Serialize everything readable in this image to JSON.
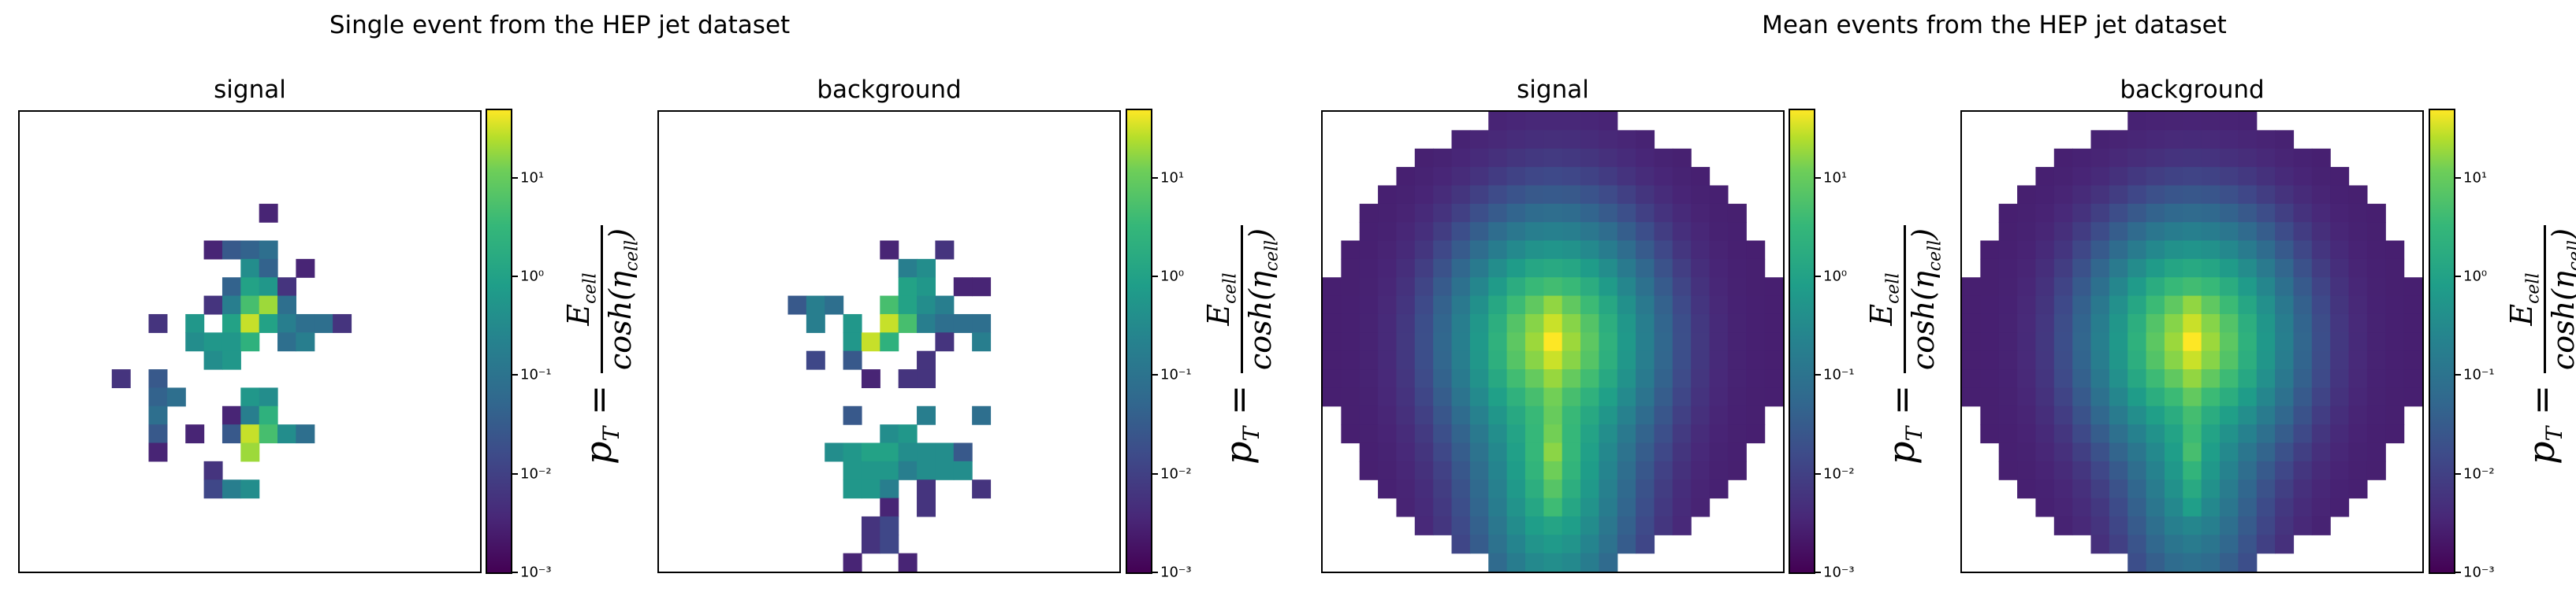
{
  "suptitles": [
    "Single event from the HEP jet dataset",
    "Mean events from the HEP jet dataset"
  ],
  "colorbar_label": {
    "lhs": "p",
    "lhs_sub": "T",
    "numerator": "E",
    "numerator_sub": "cell",
    "denominator": "cosh(η",
    "denominator_sub": "cell",
    "denominator_close": ")"
  },
  "colormap": "viridis",
  "chart_data": [
    {
      "type": "heatmap",
      "title": "signal",
      "group": "Single event from the HEP jet dataset",
      "grid_size": [
        25,
        25
      ],
      "scale": "log",
      "colorbar": {
        "ticks": [
          "10⁻³",
          "10⁻²",
          "10⁻¹",
          "10⁰",
          "10¹"
        ],
        "tick_values": [
          0.001,
          0.01,
          0.1,
          1,
          10
        ],
        "range": [
          0.001,
          50
        ]
      },
      "cells": [
        [
          6,
          13,
          0.003
        ],
        [
          8,
          10,
          0.003
        ],
        [
          8,
          11,
          0.02
        ],
        [
          8,
          12,
          0.03
        ],
        [
          8,
          13,
          0.05
        ],
        [
          9,
          12,
          0.2
        ],
        [
          9,
          13,
          0.03
        ],
        [
          9,
          15,
          0.003
        ],
        [
          10,
          11,
          0.03
        ],
        [
          10,
          12,
          0.5
        ],
        [
          10,
          13,
          0.3
        ],
        [
          10,
          14,
          0.005
        ],
        [
          11,
          10,
          0.005
        ],
        [
          11,
          11,
          0.1
        ],
        [
          11,
          12,
          2
        ],
        [
          11,
          13,
          10
        ],
        [
          11,
          14,
          0.05
        ],
        [
          12,
          7,
          0.005
        ],
        [
          12,
          9,
          0.3
        ],
        [
          12,
          11,
          0.5
        ],
        [
          12,
          12,
          20
        ],
        [
          12,
          13,
          0.5
        ],
        [
          12,
          14,
          0.1
        ],
        [
          12,
          15,
          0.05
        ],
        [
          12,
          16,
          0.05
        ],
        [
          12,
          17,
          0.005
        ],
        [
          13,
          9,
          0.2
        ],
        [
          13,
          10,
          0.3
        ],
        [
          13,
          11,
          0.3
        ],
        [
          13,
          12,
          1
        ],
        [
          13,
          14,
          0.05
        ],
        [
          13,
          15,
          0.1
        ],
        [
          14,
          10,
          0.2
        ],
        [
          14,
          11,
          0.3
        ],
        [
          15,
          5,
          0.005
        ],
        [
          15,
          7,
          0.02
        ],
        [
          16,
          7,
          0.03
        ],
        [
          16,
          8,
          0.05
        ],
        [
          16,
          12,
          0.3
        ],
        [
          16,
          13,
          0.2
        ],
        [
          17,
          7,
          0.05
        ],
        [
          17,
          11,
          0.003
        ],
        [
          17,
          12,
          0.1
        ],
        [
          17,
          13,
          1
        ],
        [
          18,
          7,
          0.02
        ],
        [
          18,
          9,
          0.003
        ],
        [
          18,
          11,
          0.02
        ],
        [
          18,
          12,
          20
        ],
        [
          18,
          13,
          2
        ],
        [
          18,
          14,
          0.2
        ],
        [
          18,
          15,
          0.05
        ],
        [
          19,
          7,
          0.003
        ],
        [
          19,
          12,
          10
        ],
        [
          20,
          10,
          0.005
        ],
        [
          21,
          10,
          0.01
        ],
        [
          21,
          11,
          0.1
        ],
        [
          21,
          12,
          0.2
        ]
      ]
    },
    {
      "type": "heatmap",
      "title": "background",
      "group": "Single event from the HEP jet dataset",
      "grid_size": [
        25,
        25
      ],
      "scale": "log",
      "colorbar": {
        "ticks": [
          "10⁻³",
          "10⁻²",
          "10⁻¹",
          "10⁰",
          "10¹"
        ],
        "tick_values": [
          0.001,
          0.01,
          0.1,
          1,
          10
        ],
        "range": [
          0.001,
          50
        ]
      },
      "cells": [
        [
          8,
          12,
          0.003
        ],
        [
          8,
          15,
          0.005
        ],
        [
          9,
          13,
          0.1
        ],
        [
          9,
          14,
          0.2
        ],
        [
          10,
          13,
          0.5
        ],
        [
          10,
          14,
          0.3
        ],
        [
          10,
          16,
          0.003
        ],
        [
          10,
          17,
          0.003
        ],
        [
          11,
          7,
          0.02
        ],
        [
          11,
          8,
          0.1
        ],
        [
          11,
          9,
          0.05
        ],
        [
          11,
          12,
          2
        ],
        [
          11,
          13,
          0.5
        ],
        [
          11,
          14,
          0.2
        ],
        [
          11,
          15,
          0.1
        ],
        [
          12,
          8,
          0.1
        ],
        [
          12,
          10,
          0.3
        ],
        [
          12,
          12,
          20
        ],
        [
          12,
          13,
          2
        ],
        [
          12,
          14,
          0.1
        ],
        [
          12,
          15,
          0.05
        ],
        [
          12,
          16,
          0.05
        ],
        [
          12,
          17,
          0.05
        ],
        [
          13,
          10,
          0.3
        ],
        [
          13,
          11,
          20
        ],
        [
          13,
          12,
          1
        ],
        [
          13,
          15,
          0.005
        ],
        [
          13,
          17,
          0.1
        ],
        [
          14,
          8,
          0.01
        ],
        [
          14,
          10,
          0.02
        ],
        [
          14,
          14,
          0.005
        ],
        [
          15,
          11,
          0.003
        ],
        [
          15,
          13,
          0.005
        ],
        [
          15,
          14,
          0.005
        ],
        [
          17,
          10,
          0.02
        ],
        [
          17,
          14,
          0.1
        ],
        [
          17,
          17,
          0.05
        ],
        [
          18,
          12,
          0.2
        ],
        [
          18,
          13,
          0.3
        ],
        [
          19,
          9,
          0.2
        ],
        [
          19,
          10,
          0.3
        ],
        [
          19,
          11,
          0.5
        ],
        [
          19,
          12,
          0.5
        ],
        [
          19,
          13,
          0.2
        ],
        [
          19,
          14,
          0.2
        ],
        [
          19,
          15,
          0.2
        ],
        [
          19,
          16,
          0.02
        ],
        [
          20,
          10,
          0.3
        ],
        [
          20,
          11,
          0.3
        ],
        [
          20,
          12,
          0.3
        ],
        [
          20,
          13,
          0.1
        ],
        [
          20,
          14,
          0.2
        ],
        [
          20,
          15,
          0.2
        ],
        [
          20,
          16,
          0.2
        ],
        [
          21,
          10,
          0.3
        ],
        [
          21,
          11,
          0.3
        ],
        [
          21,
          12,
          0.1
        ],
        [
          21,
          14,
          0.005
        ],
        [
          21,
          17,
          0.005
        ],
        [
          22,
          12,
          0.003
        ],
        [
          22,
          14,
          0.005
        ],
        [
          23,
          11,
          0.005
        ],
        [
          23,
          12,
          0.01
        ],
        [
          24,
          11,
          0.005
        ],
        [
          24,
          12,
          0.01
        ],
        [
          25,
          10,
          0.003
        ],
        [
          25,
          13,
          0.003
        ]
      ]
    },
    {
      "type": "heatmap",
      "title": "signal",
      "group": "Mean events from the HEP jet dataset",
      "grid_size": [
        25,
        25
      ],
      "scale": "log",
      "aggregate": "mean",
      "colorbar": {
        "ticks": [
          "10⁻³",
          "10⁻²",
          "10⁻¹",
          "10⁰",
          "10¹"
        ],
        "tick_values": [
          0.001,
          0.01,
          0.1,
          1,
          10
        ],
        "range": [
          0.001,
          50
        ]
      },
      "profile": {
        "circle_radius_cells": 12.5,
        "peak_value": 30,
        "core_center": [
          12,
          12
        ],
        "secondary_center": [
          18,
          12
        ],
        "secondary_peak": 4
      }
    },
    {
      "type": "heatmap",
      "title": "background",
      "group": "Mean events from the HEP jet dataset",
      "grid_size": [
        25,
        25
      ],
      "scale": "log",
      "aggregate": "mean",
      "colorbar": {
        "ticks": [
          "10⁻³",
          "10⁻²",
          "10⁻¹",
          "10⁰",
          "10¹"
        ],
        "tick_values": [
          0.001,
          0.01,
          0.1,
          1,
          10
        ],
        "range": [
          0.001,
          50
        ]
      },
      "profile": {
        "circle_radius_cells": 12.5,
        "peak_value": 30,
        "core_center": [
          12,
          12
        ],
        "secondary_center": [
          18,
          12
        ],
        "secondary_peak": 1
      }
    }
  ]
}
